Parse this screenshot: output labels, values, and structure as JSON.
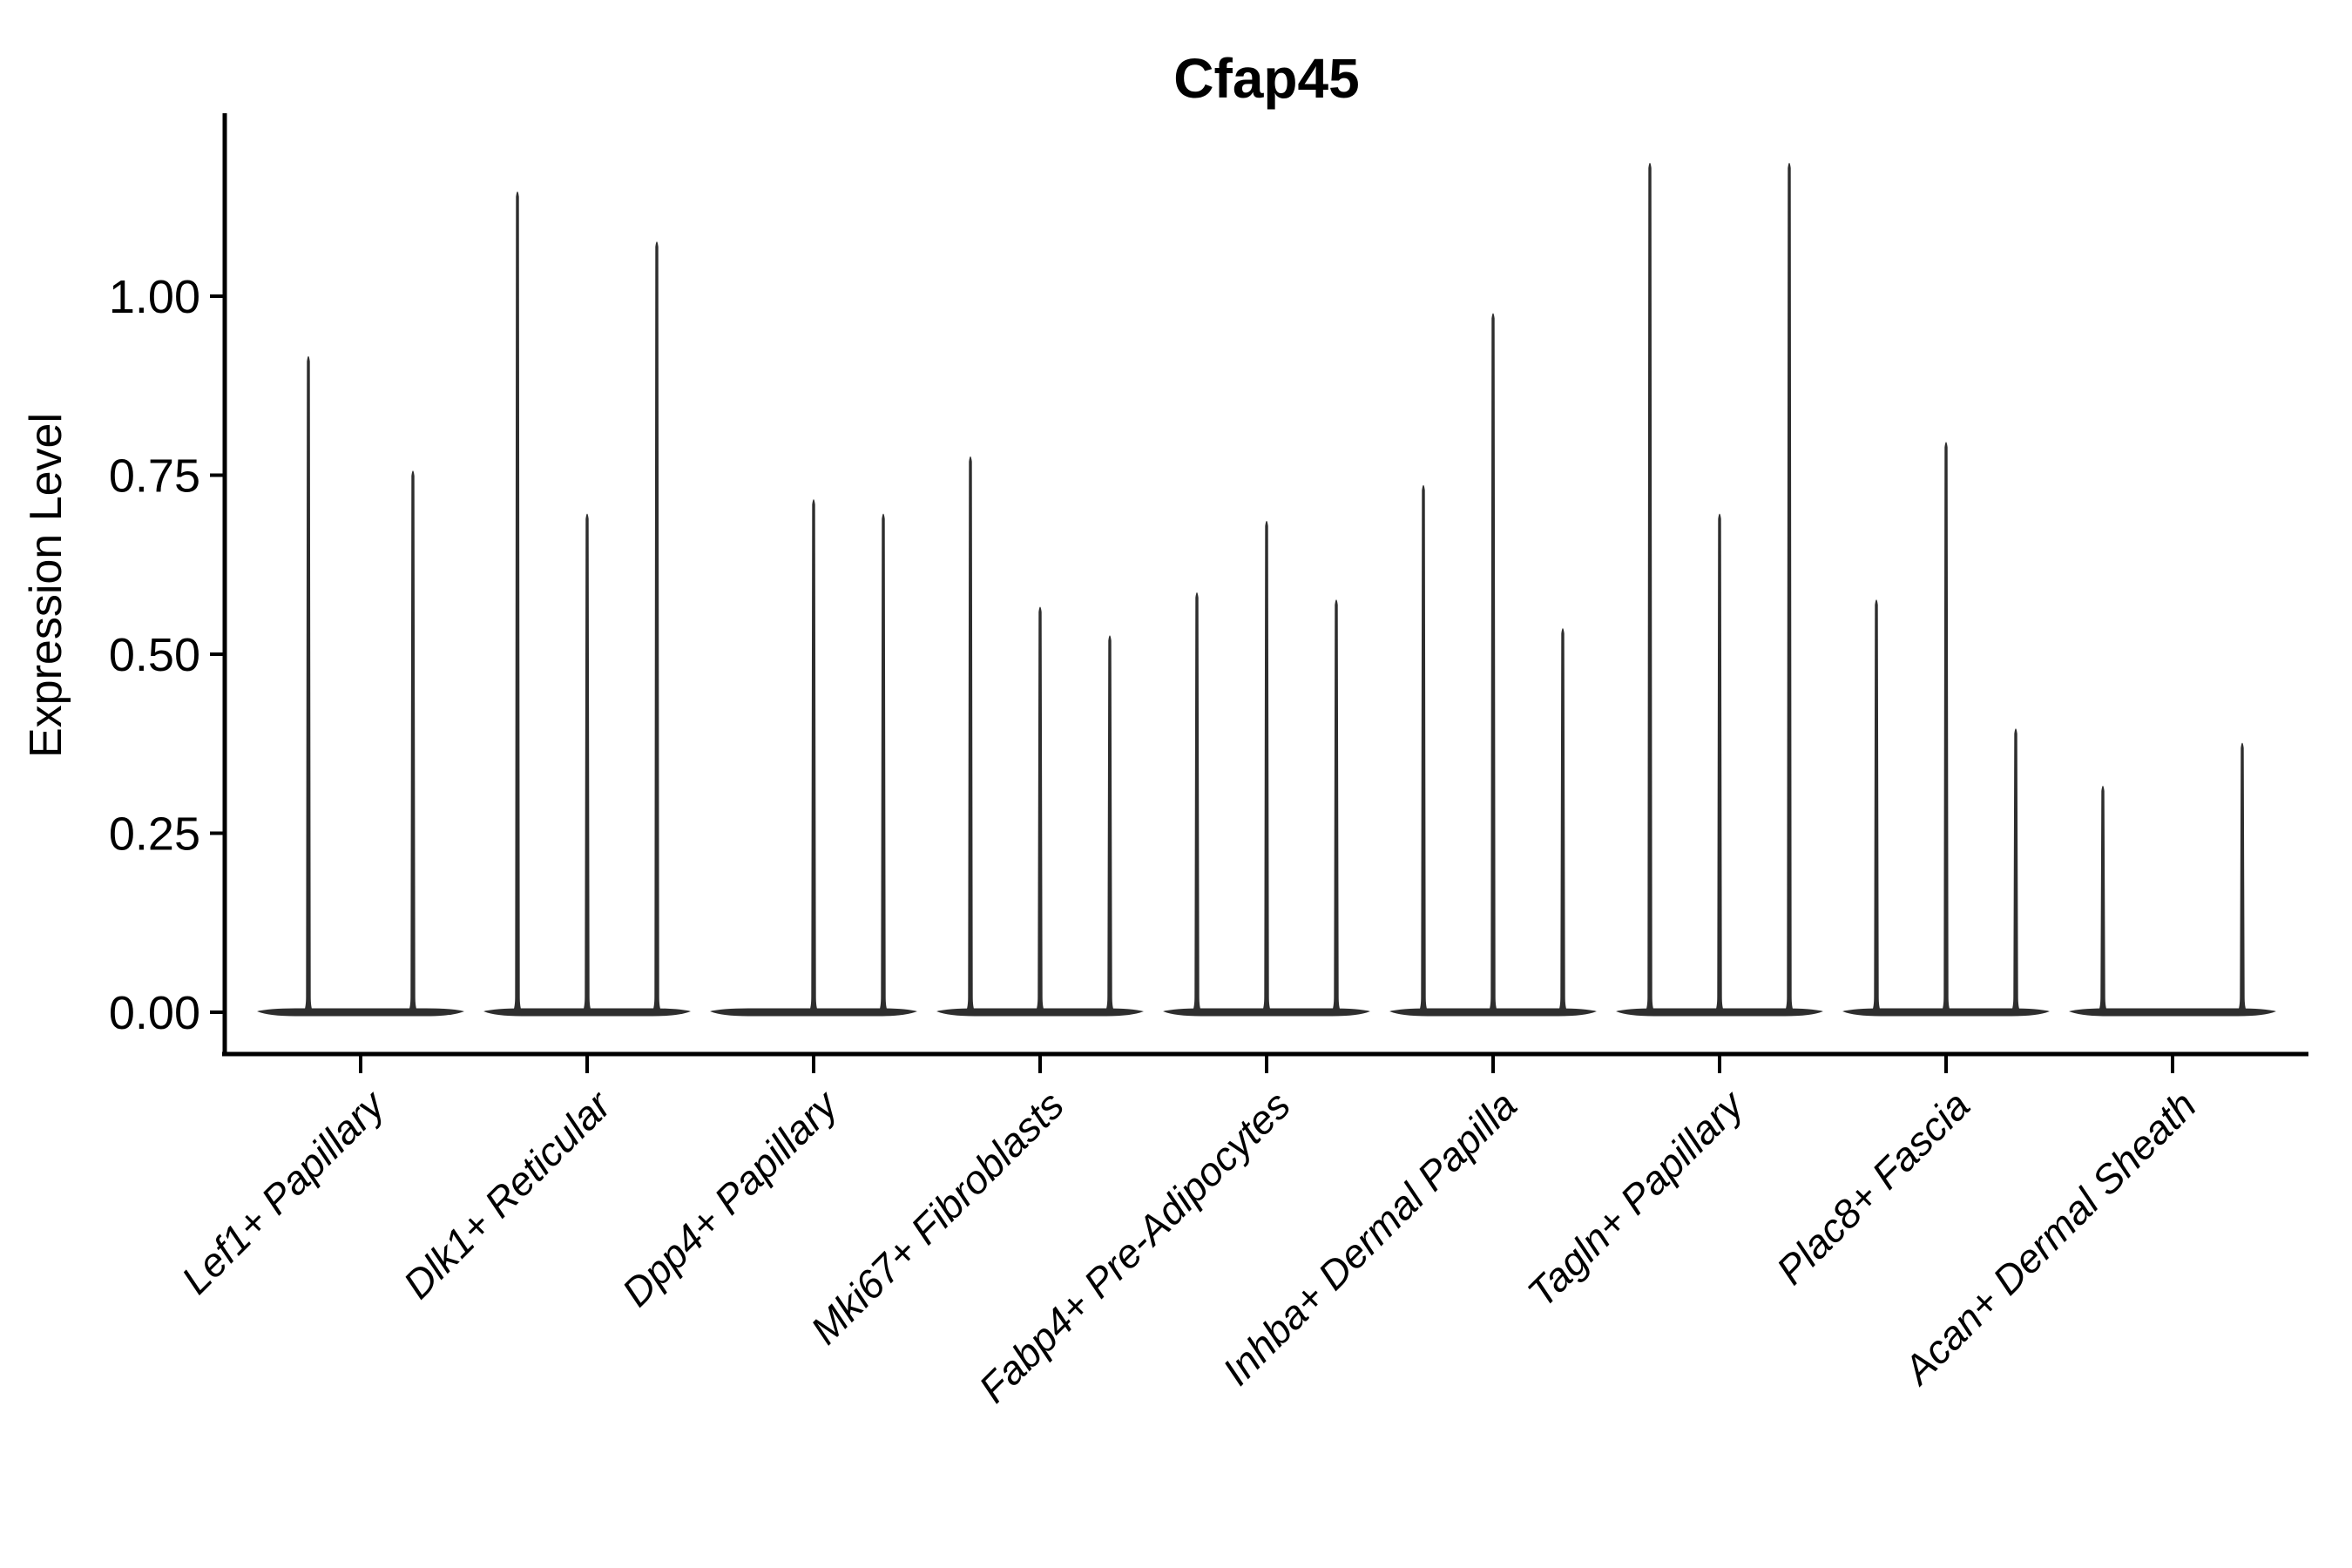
{
  "figure": {
    "background_color": "#ffffff",
    "ink_color": "#2e2e2e",
    "axis_color": "#000000",
    "text_color": "#000000"
  },
  "chart_data": {
    "type": "violin",
    "title": "Cfap45",
    "xlabel": "",
    "ylabel": "Expression Level",
    "legend_position": "none",
    "grid": false,
    "ylim": [
      -0.06,
      1.26
    ],
    "yticks": [
      0.0,
      0.25,
      0.5,
      0.75,
      1.0
    ],
    "ytick_labels": [
      "0.00",
      "0.25",
      "0.50",
      "0.75",
      "1.00"
    ],
    "x_label_rotation_deg": 45,
    "categories": [
      "Lef1+ Papillary",
      "Dlk1+ Reticular",
      "Dpp4+ Papillary",
      "Mki67+ Fibroblasts",
      "Fabp4+ Pre-Adipocytes",
      "Inhba+ Dermal Papilla",
      "Tagln+ Papillary",
      "Plac8+ Fascia",
      "Acan+ Dermal Sheath"
    ],
    "groups": [
      {
        "label": "Lef1+ Papillary",
        "slots": 2,
        "violins": [
          {
            "slot": 0,
            "max": 0.92
          },
          {
            "slot": 1,
            "max": 0.76
          }
        ]
      },
      {
        "label": "Dlk1+ Reticular",
        "slots": 3,
        "violins": [
          {
            "slot": 0,
            "max": 1.15
          },
          {
            "slot": 1,
            "max": 0.7
          },
          {
            "slot": 2,
            "max": 1.08
          }
        ]
      },
      {
        "label": "Dpp4+ Papillary",
        "slots": 3,
        "violins": [
          {
            "slot": 1,
            "max": 0.72
          },
          {
            "slot": 2,
            "max": 0.7
          }
        ]
      },
      {
        "label": "Mki67+ Fibroblasts",
        "slots": 3,
        "violins": [
          {
            "slot": 0,
            "max": 0.78
          },
          {
            "slot": 1,
            "max": 0.57
          },
          {
            "slot": 2,
            "max": 0.53
          }
        ]
      },
      {
        "label": "Fabp4+ Pre-Adipocytes",
        "slots": 3,
        "violins": [
          {
            "slot": 0,
            "max": 0.59
          },
          {
            "slot": 1,
            "max": 0.69
          },
          {
            "slot": 2,
            "max": 0.58
          }
        ]
      },
      {
        "label": "Inhba+ Dermal Papilla",
        "slots": 3,
        "violins": [
          {
            "slot": 0,
            "max": 0.74
          },
          {
            "slot": 1,
            "max": 0.98
          },
          {
            "slot": 2,
            "max": 0.54
          }
        ]
      },
      {
        "label": "Tagln+ Papillary",
        "slots": 3,
        "violins": [
          {
            "slot": 0,
            "max": 1.19
          },
          {
            "slot": 1,
            "max": 0.7
          },
          {
            "slot": 2,
            "max": 1.19
          }
        ]
      },
      {
        "label": "Plac8+ Fascia",
        "slots": 3,
        "violins": [
          {
            "slot": 0,
            "max": 0.58
          },
          {
            "slot": 1,
            "max": 0.8
          },
          {
            "slot": 2,
            "max": 0.4
          }
        ]
      },
      {
        "label": "Acan+ Dermal Sheath",
        "slots": 3,
        "violins": [
          {
            "slot": 0,
            "max": 0.32
          },
          {
            "slot": 2,
            "max": 0.38
          }
        ]
      }
    ],
    "all_violins_peak_at_zero_baseline": true
  }
}
